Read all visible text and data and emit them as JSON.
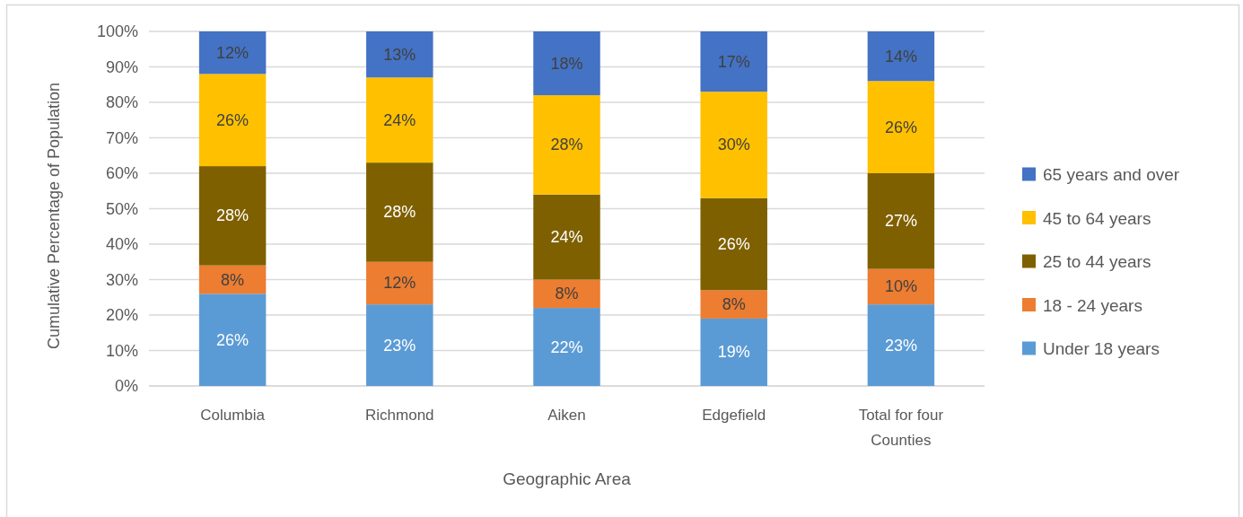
{
  "chart_data": {
    "type": "bar",
    "stacked": true,
    "xlabel": "Geographic Area",
    "ylabel": "Cumulative Percentage of Population",
    "categories": [
      "Columbia",
      "Richmond",
      "Aiken",
      "Edgefield",
      "Total for four Counties"
    ],
    "series": [
      {
        "name": "Under 18 years",
        "color": "#5b9bd5",
        "values": [
          26,
          23,
          22,
          19,
          23
        ],
        "value_labels": [
          "26%",
          "23%",
          "22%",
          "19%",
          "23%"
        ]
      },
      {
        "name": "18 - 24 years",
        "color": "#ed7d31",
        "values": [
          8,
          12,
          8,
          8,
          10
        ],
        "value_labels": [
          "8%",
          "12%",
          "8%",
          "8%",
          "10%"
        ]
      },
      {
        "name": "25 to 44 years",
        "color": "#7f6000",
        "values": [
          28,
          28,
          24,
          26,
          27
        ],
        "value_labels": [
          "28%",
          "28%",
          "24%",
          "26%",
          "27%"
        ]
      },
      {
        "name": "45 to 64 years",
        "color": "#ffc000",
        "values": [
          26,
          24,
          28,
          30,
          26
        ],
        "value_labels": [
          "26%",
          "24%",
          "28%",
          "30%",
          "26%"
        ]
      },
      {
        "name": "65 years and over",
        "color": "#4472c4",
        "values": [
          12,
          13,
          18,
          17,
          14
        ],
        "value_labels": [
          "12%",
          "13%",
          "18%",
          "17%",
          "14%"
        ]
      }
    ],
    "ylim": [
      0,
      100
    ],
    "yticks": [
      {
        "value": 0,
        "label": "0%"
      },
      {
        "value": 10,
        "label": "10%"
      },
      {
        "value": 20,
        "label": "20%"
      },
      {
        "value": 30,
        "label": "30%"
      },
      {
        "value": 40,
        "label": "40%"
      },
      {
        "value": 50,
        "label": "50%"
      },
      {
        "value": 60,
        "label": "60%"
      },
      {
        "value": 70,
        "label": "70%"
      },
      {
        "value": 80,
        "label": "80%"
      },
      {
        "value": 90,
        "label": "90%"
      },
      {
        "value": 100,
        "label": "100%"
      }
    ],
    "grid": "y",
    "legend": "right"
  }
}
